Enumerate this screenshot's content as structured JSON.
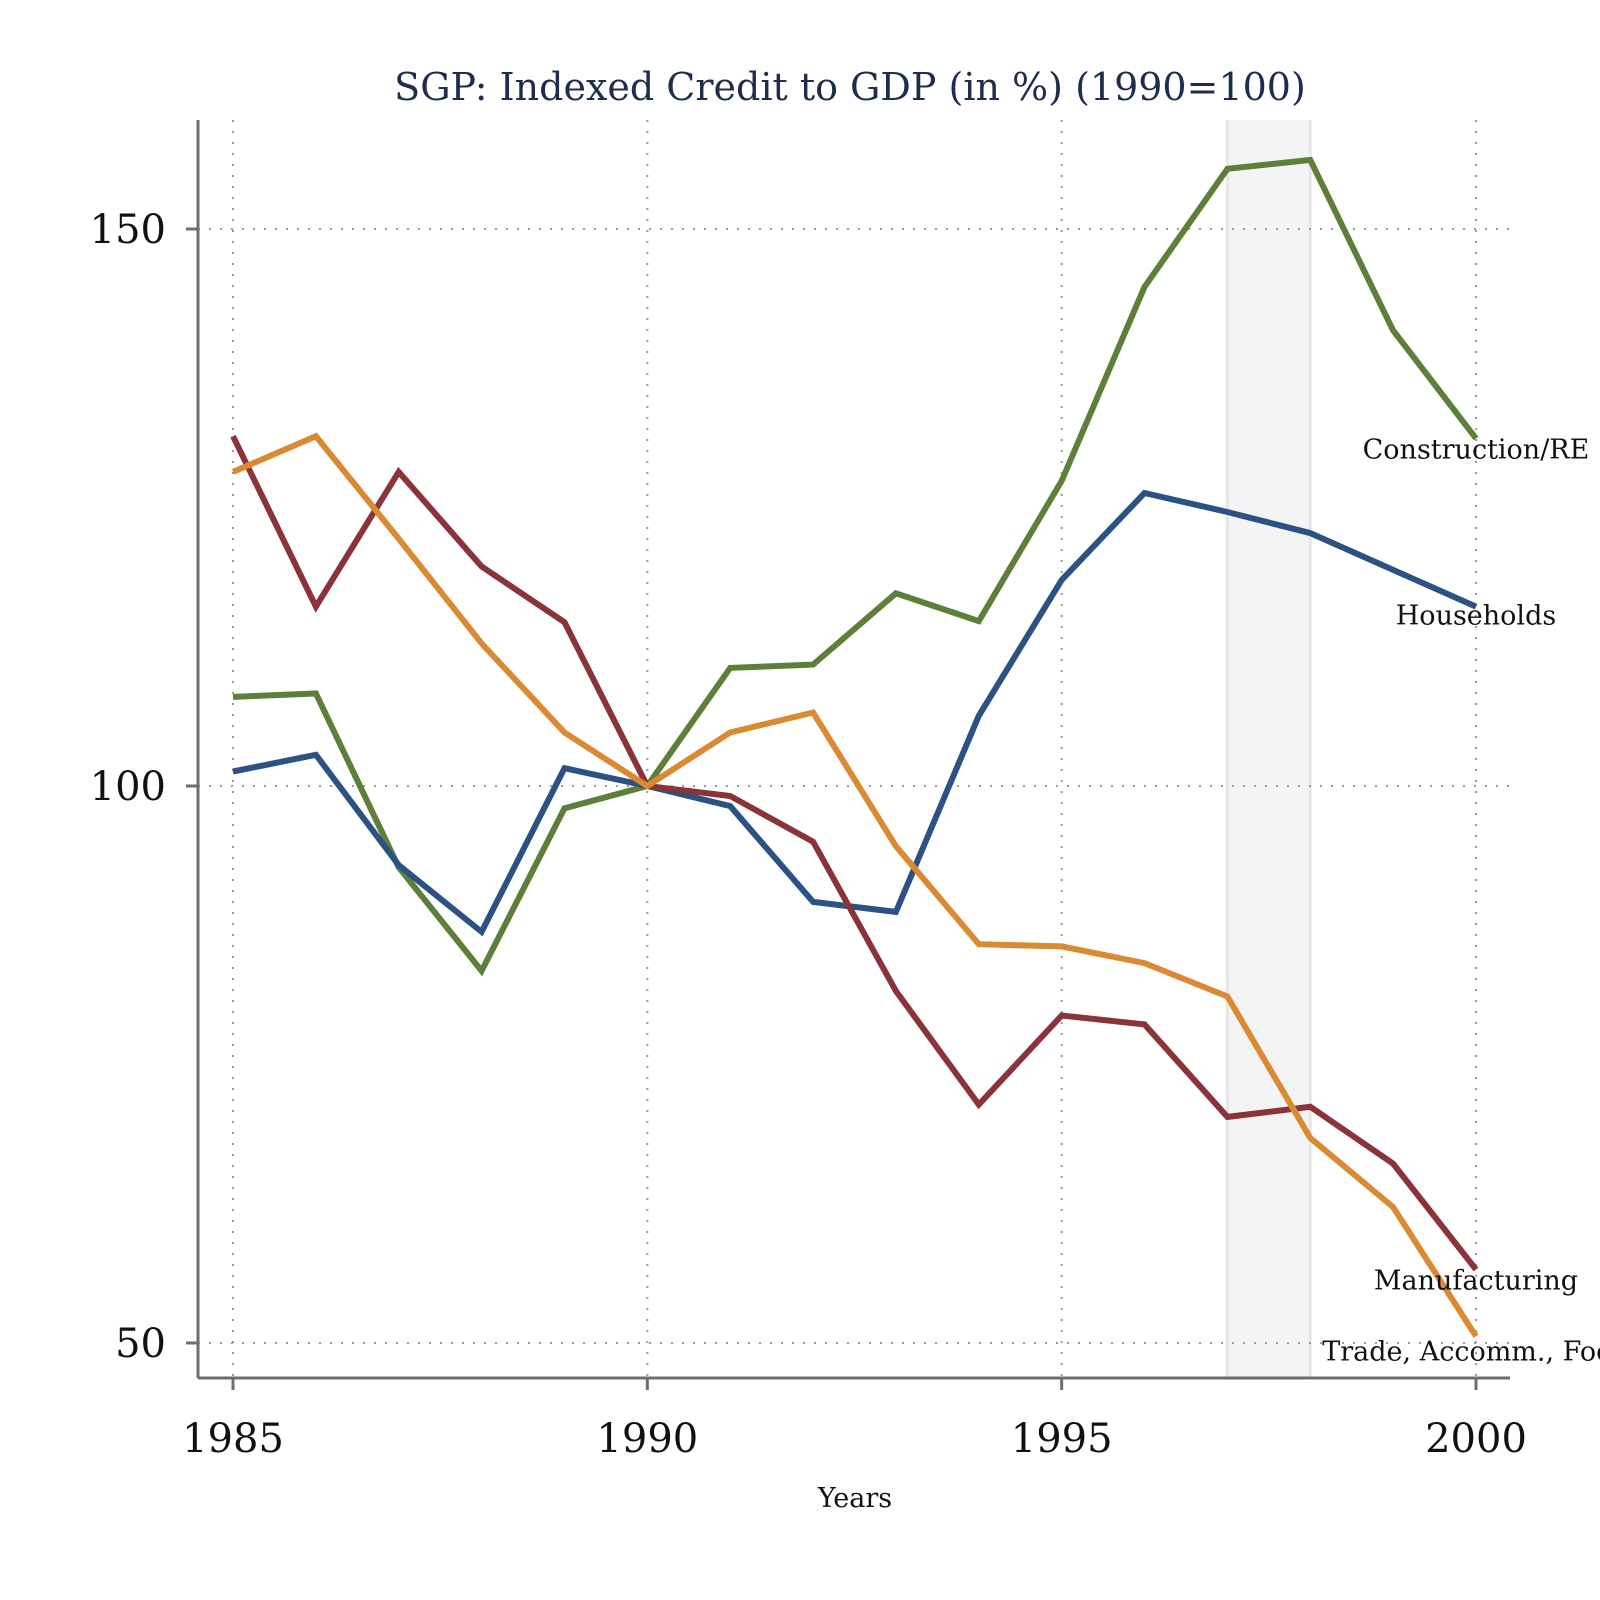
{
  "chart_data": {
    "type": "line",
    "title": "SGP: Indexed Credit to GDP (in %) (1990=100)",
    "xlabel": "Years",
    "ylabel": "",
    "xlim": [
      1985,
      2000
    ],
    "ylim": [
      47,
      160
    ],
    "x_ticks": [
      1985,
      1990,
      1995,
      2000
    ],
    "x_tick_labels": [
      "1985",
      "1990",
      "1995",
      "2000"
    ],
    "y_ticks": [
      50,
      100,
      150
    ],
    "y_tick_labels": [
      "50",
      "100",
      "150"
    ],
    "grid": true,
    "legend": "none (series labeled at line ends)",
    "shaded_region": {
      "x_start": 1997,
      "x_end": 1998,
      "color": "#f4f4f4"
    },
    "x": [
      1985,
      1986,
      1987,
      1988,
      1989,
      1990,
      1991,
      1992,
      1993,
      1994,
      1995,
      1996,
      1997,
      1998,
      1999,
      2000
    ],
    "series": [
      {
        "name": "Construction/RE",
        "color": "#5e7f3a",
        "values": [
          108.0,
          108.3,
          92.7,
          83.4,
          98.0,
          100.0,
          110.6,
          110.9,
          117.3,
          114.8,
          127.4,
          144.8,
          155.4,
          156.2,
          140.9,
          131.2
        ]
      },
      {
        "name": "Households",
        "color": "#2b5283",
        "values": [
          101.3,
          102.8,
          92.9,
          86.9,
          101.6,
          100.0,
          98.2,
          89.6,
          88.7,
          106.3,
          118.5,
          126.3,
          124.6,
          122.7,
          119.4,
          116.1
        ]
      },
      {
        "name": "Manufacturing",
        "color": "#8a3338",
        "values": [
          131.4,
          116.1,
          128.2,
          119.7,
          114.7,
          100.0,
          99.1,
          95.0,
          81.6,
          71.4,
          79.4,
          78.6,
          70.3,
          71.2,
          66.1,
          56.6
        ]
      },
      {
        "name": "Trade, Accomm., Food",
        "color": "#d98a33",
        "values": [
          128.2,
          131.4,
          122.2,
          112.8,
          104.8,
          100.0,
          104.8,
          106.6,
          94.6,
          85.8,
          85.6,
          84.1,
          81.1,
          68.4,
          62.2,
          50.6
        ]
      }
    ]
  }
}
